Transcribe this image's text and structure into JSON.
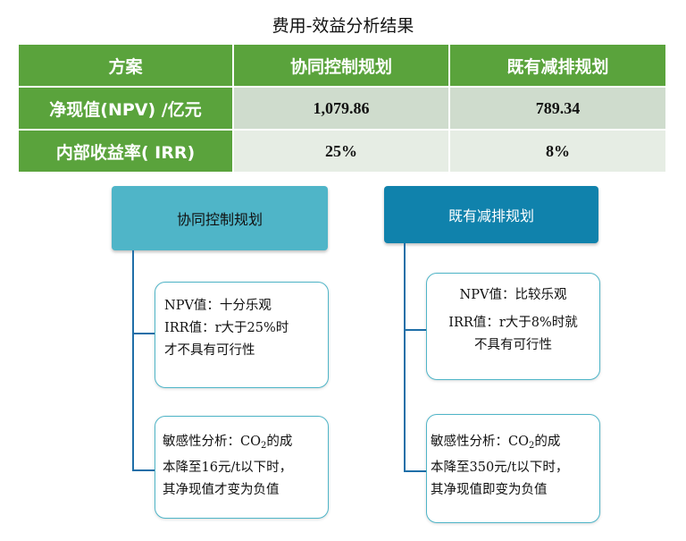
{
  "title": "费用-效益分析结果",
  "table": {
    "headers": [
      "方案",
      "协同控制规划",
      "既有减排规划"
    ],
    "rows": [
      {
        "label": "净现值(NPV) /亿元",
        "values": [
          "1,079.86",
          "789.34"
        ]
      },
      {
        "label": "内部收益率( IRR)",
        "values": [
          "25%",
          "8%"
        ]
      }
    ]
  },
  "left_plan": {
    "title": "协同控制规划",
    "box1": {
      "line1": "NPV值：十分乐观",
      "line2": "IRR值：r大于25%时",
      "line3": "才不具有可行性"
    },
    "box2": {
      "line1_a": "敏感性分析：CO",
      "sub": "2",
      "line1_b": "的成",
      "line2": "本降至16元/t以下时，",
      "line3": "其净现值才变为负值"
    }
  },
  "right_plan": {
    "title": "既有减排规划",
    "box1": {
      "line1": "NPV值：比较乐观",
      "line2": "IRR值：r大于8%时就",
      "line3": "不具有可行性"
    },
    "box2": {
      "line1_a": "敏感性分析：CO",
      "sub": "2",
      "line1_b": "的成",
      "line2": "本降至350元/t以下时，",
      "line3": "其净现值即变为负值"
    }
  },
  "colors": {
    "table_header": "#5aa33c",
    "row1": "#cfdccd",
    "row2": "#e6ede4",
    "left_header": "#4fb5c8",
    "right_header": "#1082ac",
    "connector": "#1f6fa8"
  }
}
